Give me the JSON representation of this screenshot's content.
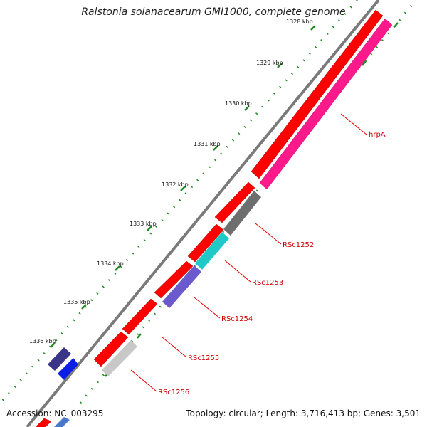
{
  "title": "Ralstonia solanacearum GMI1000, complete genome",
  "footer": {
    "accession": "Accession: NC_003295",
    "summary": "Topology: circular; Length: 3,716,413 bp; Genes: 3,501"
  },
  "ticks": [
    "1328 kbp",
    "1329 kbp",
    "1330 kbp",
    "1331 kbp",
    "1332 kbp",
    "1333 kbp",
    "1334 kbp",
    "1335 kbp",
    "1336 kbp"
  ],
  "gene_labels": [
    "hrpA",
    "RSc1252",
    "RSc1253",
    "RSc1254",
    "RSc1255",
    "RSc1256"
  ],
  "colors": {
    "backbone": "#7a7a7a",
    "tick": "#1f8a1f",
    "forward_strand": "#ff0000",
    "hrpA": "#ff1a8c",
    "RSc1252": "#6e6e6e",
    "RSc1253": "#20c8c8",
    "RSc1254": "#6a5acd",
    "RSc1256": "#c8c8c8",
    "outer_gene_dark": "#3a3588",
    "outer_gene_blue": "#0a1ee6",
    "label_line": "#e00000"
  }
}
